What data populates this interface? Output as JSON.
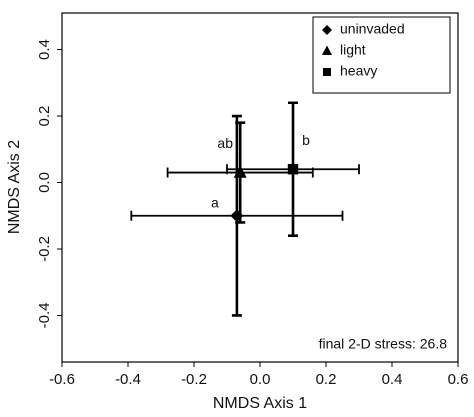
{
  "chart_data": {
    "type": "scatter",
    "x_label": "NMDS Axis 1",
    "y_label": "NMDS Axis 2",
    "annotation": "final 2-D stress: 26.8",
    "xlim": [
      -0.6,
      0.6
    ],
    "ylim": [
      -0.54,
      0.51
    ],
    "xticks": [
      -0.6,
      -0.4,
      -0.2,
      {
        "value": 0,
        "label": "0.0"
      },
      0.2,
      0.4,
      0.6
    ],
    "yticks": [
      -0.4,
      -0.2,
      {
        "value": 0,
        "label": "0.0"
      },
      0.2,
      0.4
    ],
    "legend": "upper right",
    "series": [
      {
        "name": "uninvaded",
        "color": "#000000",
        "marker": "diamond",
        "x": [
          -0.07
        ],
        "values": [
          -0.1
        ],
        "xerr": [
          0.32
        ],
        "yerr": [
          0.3
        ],
        "labels": [
          "a"
        ]
      },
      {
        "name": "light",
        "color": "#000000",
        "marker": "triangle",
        "x": [
          -0.06
        ],
        "values": [
          0.03
        ],
        "xerr": [
          0.22
        ],
        "yerr": [
          0.15
        ],
        "labels": [
          "ab"
        ]
      },
      {
        "name": "heavy",
        "color": "#000000",
        "marker": "square",
        "x": [
          0.1
        ],
        "values": [
          0.04
        ],
        "xerr": [
          0.2
        ],
        "yerr": [
          0.2
        ],
        "labels": [
          "b"
        ]
      }
    ]
  }
}
